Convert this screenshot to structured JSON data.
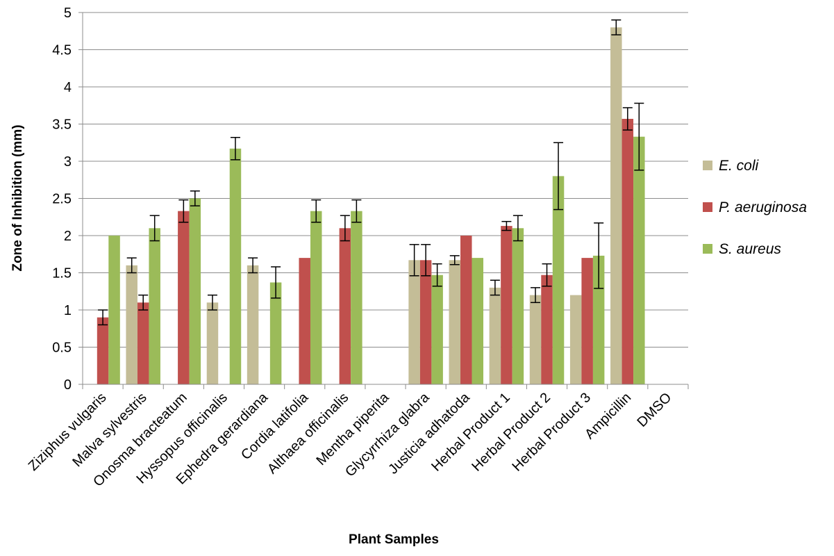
{
  "chart_data": {
    "type": "bar",
    "title": "",
    "xlabel": "Plant Samples",
    "ylabel": "Zone of Inhibition (mm)",
    "ylim": [
      0,
      5
    ],
    "yticks": [
      "0",
      "0.5",
      "1",
      "1.5",
      "2",
      "2.5",
      "3",
      "3.5",
      "4",
      "4.5",
      "5"
    ],
    "grid": "horizontal",
    "legend_position": "right",
    "categories": [
      "Ziziphus vulgaris",
      "Malva sylvestris",
      "Onosma bracteatum",
      "Hyssopus officinalis",
      "Ephedra gerardiana",
      "Cordia latifolia",
      "Althaea officinalis",
      "Mentha piperita",
      "Glycyrrhiza glabra",
      "Justicia adhatoda",
      "Herbal Product 1",
      "Herbal Product 2",
      "Herbal Product 3",
      "Ampicillin",
      "DMSO"
    ],
    "series": [
      {
        "name": "E. coli",
        "color": "#c4bd97",
        "values": [
          0,
          1.6,
          0,
          1.1,
          1.6,
          0,
          0,
          0,
          1.67,
          1.67,
          1.3,
          1.2,
          1.2,
          4.8,
          0
        ],
        "errors": [
          0,
          0.1,
          0,
          0.1,
          0.1,
          0,
          0,
          0,
          0.21,
          0.06,
          0.1,
          0.1,
          0,
          0.1,
          0
        ]
      },
      {
        "name": "P. aeruginosa",
        "color": "#c0504d",
        "values": [
          0.9,
          1.1,
          2.33,
          0,
          0,
          1.7,
          2.1,
          0,
          1.67,
          2.0,
          2.13,
          1.47,
          1.7,
          3.57,
          0
        ],
        "errors": [
          0.1,
          0.1,
          0.15,
          0,
          0,
          0,
          0.17,
          0,
          0.21,
          0,
          0.06,
          0.15,
          0,
          0.15,
          0
        ]
      },
      {
        "name": "S. aureus",
        "color": "#9bbb59",
        "values": [
          2.0,
          2.1,
          2.5,
          3.17,
          1.37,
          2.33,
          2.33,
          0,
          1.47,
          1.7,
          2.1,
          2.8,
          1.73,
          3.33,
          0
        ],
        "errors": [
          0,
          0.17,
          0.1,
          0.15,
          0.21,
          0.15,
          0.15,
          0,
          0.15,
          0,
          0.17,
          0.45,
          0.44,
          0.45,
          0
        ]
      }
    ]
  }
}
